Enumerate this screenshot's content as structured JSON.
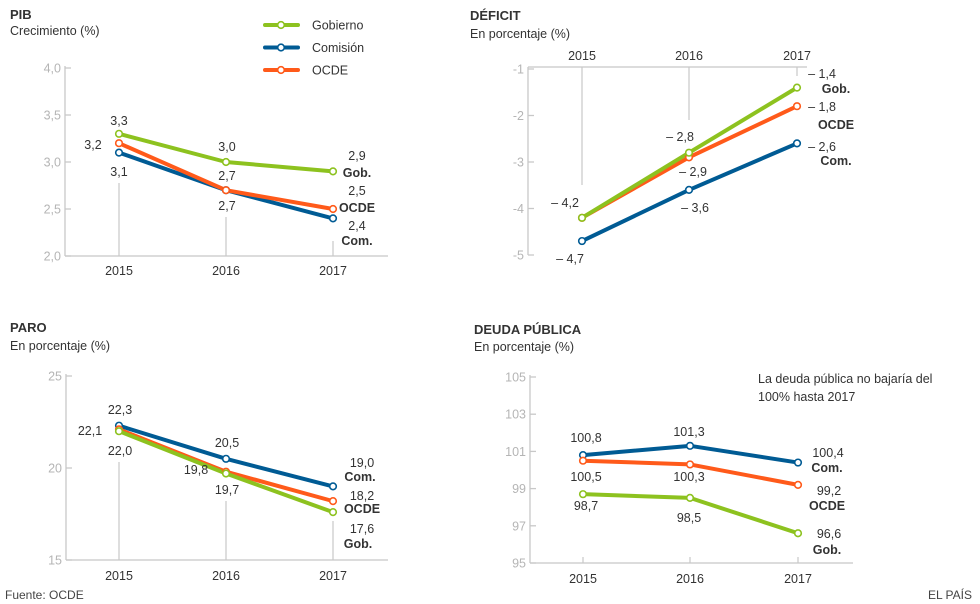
{
  "footer": {
    "source": "Fuente: OCDE",
    "brand": "EL PAÍS"
  },
  "legend": {
    "items": [
      {
        "name": "Gobierno",
        "color": "#8dc21f"
      },
      {
        "name": "Comisión",
        "color": "#005b94"
      },
      {
        "name": "OCDE",
        "color": "#ff5a1a"
      }
    ]
  },
  "chart_data": [
    {
      "type": "line",
      "title": "PIB",
      "subtitle": "Crecimiento (%)",
      "categories": [
        "2015",
        "2016",
        "2017"
      ],
      "ylim": [
        2.0,
        4.0
      ],
      "yticks": [
        "2,0",
        "2,5",
        "3,0",
        "3,5",
        "4,0"
      ],
      "x_axis_position": "bottom",
      "series": [
        {
          "name": "Gobierno",
          "short": "Gob.",
          "color": "#8dc21f",
          "values": [
            3.3,
            3.0,
            2.9
          ],
          "labels": [
            "3,3",
            "3,0",
            "2,9"
          ]
        },
        {
          "name": "Comisión",
          "short": "Com.",
          "color": "#005b94",
          "values": [
            3.1,
            2.7,
            2.4
          ],
          "labels": [
            "3,1",
            "2,7",
            "2,4"
          ]
        },
        {
          "name": "OCDE",
          "short": "OCDE",
          "color": "#ff5a1a",
          "values": [
            3.2,
            2.7,
            2.5
          ],
          "labels": [
            "3,2",
            "2,7",
            "2,5"
          ]
        }
      ]
    },
    {
      "type": "line",
      "title": "DÉFICIT",
      "subtitle": "En porcentaje (%)",
      "categories": [
        "2015",
        "2016",
        "2017"
      ],
      "ylim": [
        -5,
        -1
      ],
      "yticks": [
        "-5",
        "-4",
        "-3",
        "-2",
        "-1"
      ],
      "x_axis_position": "top",
      "series": [
        {
          "name": "Gobierno",
          "short": "Gob.",
          "color": "#8dc21f",
          "values": [
            -4.2,
            -2.8,
            -1.4
          ],
          "labels": [
            "– 4,2",
            "– 2,8",
            "– 1,4"
          ]
        },
        {
          "name": "Comisión",
          "short": "Com.",
          "color": "#005b94",
          "values": [
            -4.7,
            -3.6,
            -2.6
          ],
          "labels": [
            "– 4,7",
            "– 3,6",
            "– 2,6"
          ]
        },
        {
          "name": "OCDE",
          "short": "OCDE",
          "color": "#ff5a1a",
          "values": [
            -4.2,
            -2.9,
            -1.8
          ],
          "labels": [
            "",
            "– 2,9",
            "– 1,8"
          ]
        }
      ]
    },
    {
      "type": "line",
      "title": "PARO",
      "subtitle": "En porcentaje (%)",
      "categories": [
        "2015",
        "2016",
        "2017"
      ],
      "ylim": [
        15,
        25
      ],
      "yticks": [
        "15",
        "20",
        "25"
      ],
      "x_axis_position": "bottom",
      "series": [
        {
          "name": "Gobierno",
          "short": "Gob.",
          "color": "#8dc21f",
          "values": [
            22.0,
            19.7,
            17.6
          ],
          "labels": [
            "22,0",
            "19,7",
            "17,6"
          ]
        },
        {
          "name": "Comisión",
          "short": "Com.",
          "color": "#005b94",
          "values": [
            22.3,
            20.5,
            19.0
          ],
          "labels": [
            "22,3",
            "20,5",
            "19,0"
          ]
        },
        {
          "name": "OCDE",
          "short": "OCDE",
          "color": "#ff5a1a",
          "values": [
            22.1,
            19.8,
            18.2
          ],
          "labels": [
            "22,1",
            "19,8",
            "18,2"
          ]
        }
      ]
    },
    {
      "type": "line",
      "title": "DEUDA PÚBLICA",
      "subtitle": "En porcentaje (%)",
      "annotation": [
        "La deuda pública no bajaría del",
        "100% hasta 2017"
      ],
      "categories": [
        "2015",
        "2016",
        "2017"
      ],
      "ylim": [
        95,
        105
      ],
      "yticks": [
        "95",
        "97",
        "99",
        "101",
        "103",
        "105"
      ],
      "x_axis_position": "bottom",
      "series": [
        {
          "name": "Gobierno",
          "short": "Gob.",
          "color": "#8dc21f",
          "values": [
            98.7,
            98.5,
            96.6
          ],
          "labels": [
            "98,7",
            "98,5",
            "96,6"
          ]
        },
        {
          "name": "Comisión",
          "short": "Com.",
          "color": "#005b94",
          "values": [
            100.8,
            101.3,
            100.4
          ],
          "labels": [
            "100,8",
            "101,3",
            "100,4"
          ]
        },
        {
          "name": "OCDE",
          "short": "OCDE",
          "color": "#ff5a1a",
          "values": [
            100.5,
            100.3,
            99.2
          ],
          "labels": [
            "100,5",
            "100,3",
            "99,2"
          ]
        }
      ]
    }
  ]
}
